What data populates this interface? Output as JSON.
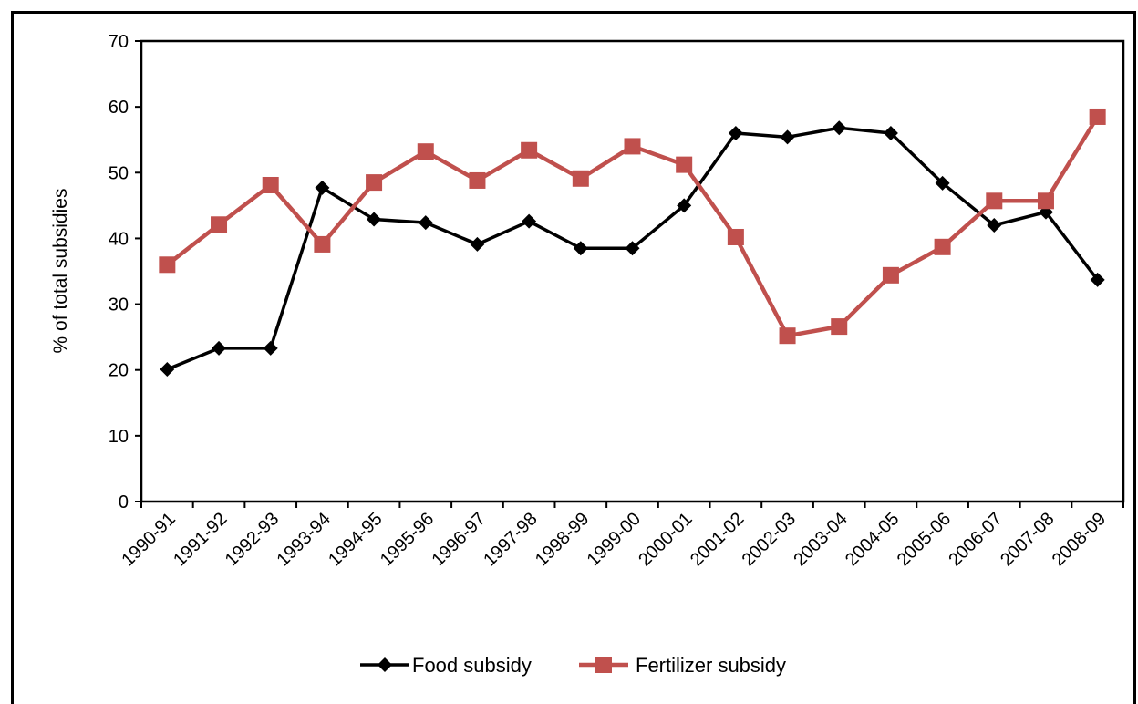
{
  "chart_data": {
    "type": "line",
    "ylabel": "% of total subsidies",
    "xlabel": "",
    "ylim": [
      0,
      70
    ],
    "yticks": [
      0,
      10,
      20,
      30,
      40,
      50,
      60,
      70
    ],
    "grid": false,
    "legend_position": "bottom",
    "categories": [
      "1990-91",
      "1991-92",
      "1992-93",
      "1993-94",
      "1994-95",
      "1995-96",
      "1996-97",
      "1997-98",
      "1998-99",
      "1999-00",
      "2000-01",
      "2001-02",
      "2002-03",
      "2003-04",
      "2004-05",
      "2005-06",
      "2006-07",
      "2007-08",
      "2008-09"
    ],
    "series": [
      {
        "name": "Food subsidy",
        "color": "#000000",
        "marker": "diamond",
        "values": [
          20.1,
          23.3,
          23.3,
          47.7,
          42.9,
          42.4,
          39.1,
          42.6,
          38.5,
          38.5,
          45.0,
          56.0,
          55.4,
          56.8,
          56.0,
          48.4,
          42.0,
          44.0,
          33.7
        ]
      },
      {
        "name": "Fertilizer subsidy",
        "color": "#c0504d",
        "marker": "square",
        "values": [
          36.0,
          42.1,
          48.1,
          39.1,
          48.5,
          53.2,
          48.8,
          53.4,
          49.1,
          54.0,
          51.2,
          40.2,
          25.2,
          26.6,
          34.4,
          38.7,
          45.7,
          45.7,
          58.5
        ]
      }
    ]
  }
}
